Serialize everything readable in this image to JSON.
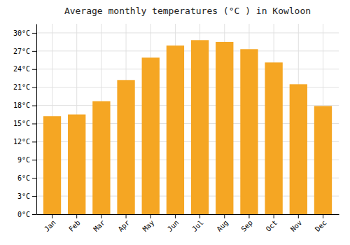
{
  "chart_data": {
    "type": "bar",
    "title": "Average monthly temperatures (°C ) in Kowloon",
    "categories": [
      "Jan",
      "Feb",
      "Mar",
      "Apr",
      "May",
      "Jun",
      "Jul",
      "Aug",
      "Sep",
      "Oct",
      "Nov",
      "Dec"
    ],
    "values": [
      16.2,
      16.5,
      18.7,
      22.2,
      25.9,
      27.9,
      28.8,
      28.5,
      27.3,
      25.1,
      21.5,
      17.9
    ],
    "color": "#F5A623",
    "ylim": [
      0,
      31.5
    ],
    "yticks": [
      {
        "value": 0,
        "label": "0°C"
      },
      {
        "value": 3,
        "label": "3°C"
      },
      {
        "value": 6,
        "label": "6°C"
      },
      {
        "value": 9,
        "label": "9°C"
      },
      {
        "value": 12,
        "label": "12°C"
      },
      {
        "value": 15,
        "label": "15°C"
      },
      {
        "value": 18,
        "label": "18°C"
      },
      {
        "value": 21,
        "label": "21°C"
      },
      {
        "value": 24,
        "label": "24°C"
      },
      {
        "value": 27,
        "label": "27°C"
      },
      {
        "value": 30,
        "label": "30°C"
      }
    ],
    "grid": true
  }
}
